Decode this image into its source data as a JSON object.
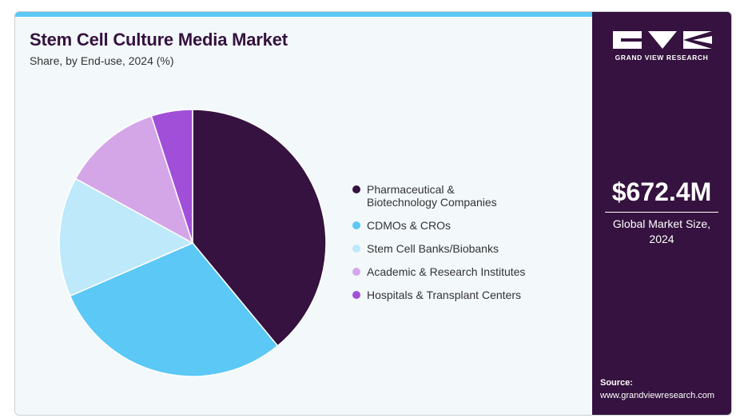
{
  "chart_data": {
    "type": "pie",
    "title": "Stem Cell Culture Media Market",
    "subtitle": "Share, by End-use, 2024 (%)",
    "categories": [
      "Pharmaceutical & Biotechnology Companies",
      "CDMOs & CROs",
      "Stem Cell Banks/Biobanks",
      "Academic & Research Institutes",
      "Hospitals & Transplant Centers"
    ],
    "legend_labels": [
      "Pharmaceutical &\nBiotechnology Companies",
      "CDMOs & CROs",
      "Stem Cell Banks/Biobanks",
      "Academic & Research Institutes",
      "Hospitals & Transplant Centers"
    ],
    "values": [
      39,
      29.5,
      14.5,
      12,
      5
    ],
    "colors": [
      "#35123f",
      "#5bc8f5",
      "#bde9fa",
      "#d4a6e8",
      "#a14fd8"
    ],
    "legend_position": "right"
  },
  "sidebar": {
    "brand": "GRAND VIEW RESEARCH",
    "market_value": "$672.4M",
    "market_label": "Global Market Size,\n2024",
    "source_label": "Source:",
    "source_url": "www.grandviewresearch.com"
  },
  "colors": {
    "accent_bar": "#5bc8f5",
    "sidebar_bg": "#35123f",
    "panel_bg": "#f3f8fb"
  }
}
